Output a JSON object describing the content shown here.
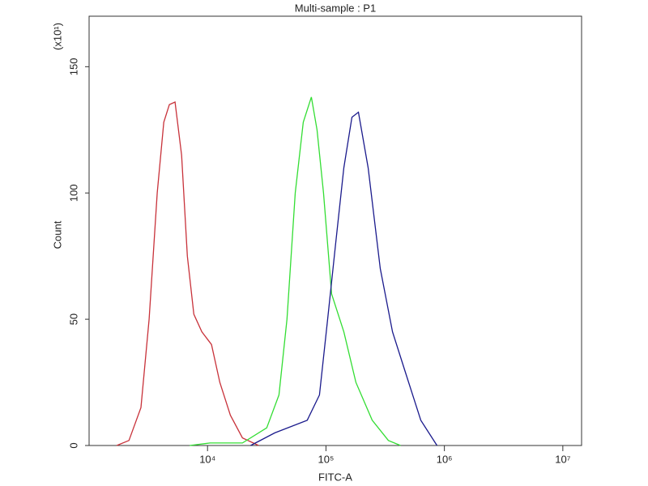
{
  "chart_data": {
    "type": "line",
    "title": "Multi-sample : P1",
    "xlabel": "FITC-A",
    "ylabel": "Count",
    "y_multiplier": "(x10¹)",
    "xscale": "log",
    "xlim": [
      1000,
      14400000
    ],
    "ylim": [
      0,
      170
    ],
    "xticks": [
      {
        "value": 10000,
        "label": "10⁴"
      },
      {
        "value": 100000,
        "label": "10⁵"
      },
      {
        "value": 1000000,
        "label": "10⁶"
      },
      {
        "value": 10000000,
        "label": "10⁷"
      }
    ],
    "yticks": [
      0,
      50,
      100,
      150
    ],
    "series": [
      {
        "color": "#c8323a",
        "x": [
          1710,
          2170,
          2740,
          3210,
          3760,
          4270,
          4760,
          5320,
          6040,
          6750,
          7660,
          8950,
          10800,
          12700,
          15600,
          19700,
          27000
        ],
        "values": [
          0,
          2,
          15,
          50,
          100,
          128,
          135,
          136,
          115,
          75,
          52,
          45,
          40,
          25,
          12,
          3,
          0
        ]
      },
      {
        "color": "#33dd33",
        "x": [
          7060,
          10500,
          19700,
          31600,
          40100,
          46900,
          55000,
          64300,
          75300,
          84100,
          95300,
          111700,
          141600,
          179100,
          245500,
          336500,
          426600
        ],
        "values": [
          0,
          1,
          1,
          7,
          20,
          50,
          100,
          128,
          138,
          125,
          100,
          60,
          45,
          25,
          10,
          2,
          0
        ]
      },
      {
        "color": "#1a1a8c",
        "x": [
          23100,
          37000,
          69500,
          88100,
          103300,
          120800,
          141600,
          165600,
          187900,
          227000,
          287700,
          364800,
          461300,
          632400,
          866700
        ],
        "values": [
          0,
          5,
          10,
          20,
          50,
          80,
          110,
          130,
          132,
          110,
          70,
          45,
          30,
          10,
          0
        ]
      }
    ]
  }
}
